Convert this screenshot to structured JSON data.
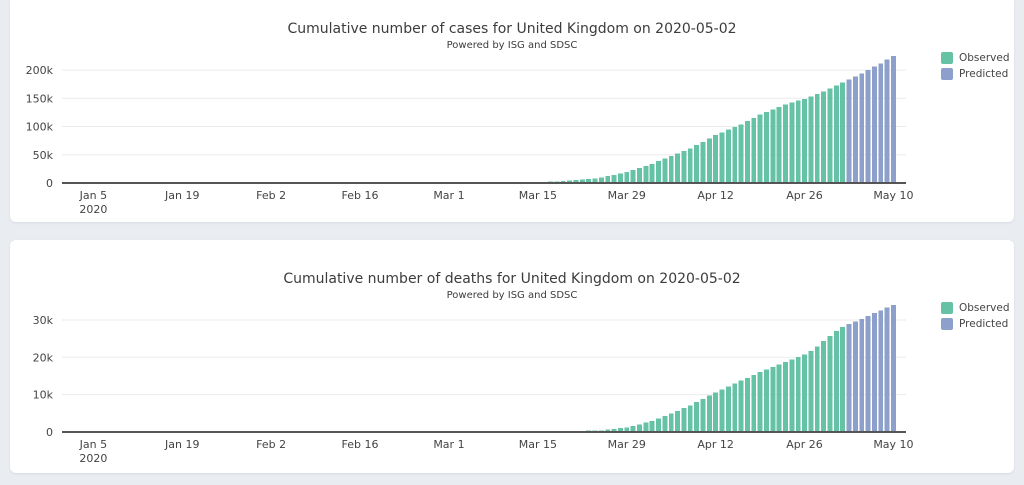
{
  "page": {
    "background": "#e9edf2",
    "card_background": "#ffffff"
  },
  "style": {
    "axis_color": "#555555",
    "grid_color": "#ebebeb",
    "text_color": "#444444",
    "observed_color": "#66c2a5",
    "predicted_color": "#8da0cb"
  },
  "chart_data": [
    {
      "type": "bar",
      "title": "Cumulative number of cases for United Kingdom on 2020-05-02",
      "subtitle": "Powered by ISG and SDSC",
      "xlabel": "",
      "ylabel": "",
      "ylim": [
        0,
        232000
      ],
      "grid": "horizontal-only",
      "legend_position": "top-right",
      "legend": [
        {
          "label": "Observed",
          "color": "#66c2a5"
        },
        {
          "label": "Predicted",
          "color": "#8da0cb"
        }
      ],
      "y_ticks": [
        {
          "v": 0,
          "label": "0"
        },
        {
          "v": 50000,
          "label": "50k"
        },
        {
          "v": 100000,
          "label": "100k"
        },
        {
          "v": 150000,
          "label": "150k"
        },
        {
          "v": 200000,
          "label": "200k"
        }
      ],
      "x_axis_start_date": "2020-01-04",
      "x_axis_end_date": "2020-05-10",
      "x_ticks": [
        {
          "day": 1,
          "label": "Jan 5",
          "sublabel": "2020"
        },
        {
          "day": 15,
          "label": "Jan 19"
        },
        {
          "day": 29,
          "label": "Feb 2"
        },
        {
          "day": 43,
          "label": "Feb 16"
        },
        {
          "day": 57,
          "label": "Mar 1"
        },
        {
          "day": 71,
          "label": "Mar 15"
        },
        {
          "day": 85,
          "label": "Mar 29"
        },
        {
          "day": 99,
          "label": "Apr 12"
        },
        {
          "day": 113,
          "label": "Apr 26"
        },
        {
          "day": 127,
          "label": "May 10"
        }
      ],
      "series": [
        {
          "name": "Observed",
          "color": "#66c2a5",
          "start_day": 43,
          "start_date": "2020-02-16",
          "values": [
            9,
            9,
            9,
            9,
            13,
            13,
            13,
            15,
            16,
            16,
            18,
            19,
            20,
            23,
            40,
            60,
            80,
            100,
            120,
            175,
            230,
            290,
            345,
            400,
            600,
            800,
            1000,
            1200,
            1400,
            1900,
            2400,
            2950,
            3500,
            4000,
            5100,
            6200,
            7300,
            8400,
            9500,
            12000,
            14500,
            17000,
            19500,
            23100,
            26700,
            30400,
            34000,
            38700,
            43300,
            48000,
            52300,
            56700,
            61000,
            67000,
            73000,
            79000,
            85000,
            89800,
            94500,
            99300,
            104000,
            109700,
            115300,
            121000,
            125500,
            130000,
            134500,
            139000,
            142300,
            145700,
            149000,
            153300,
            157700,
            162000,
            167300,
            172700,
            178000
          ]
        },
        {
          "name": "Predicted",
          "color": "#8da0cb",
          "start_day": 120,
          "start_date": "2020-05-03",
          "values": [
            183000,
            188500,
            194000,
            200000,
            206000,
            212000,
            218500,
            225000
          ]
        }
      ]
    },
    {
      "type": "bar",
      "title": "Cumulative number of deaths for United Kingdom on 2020-05-02",
      "subtitle": "Powered by ISG and SDSC",
      "xlabel": "",
      "ylabel": "",
      "ylim": [
        0,
        34000
      ],
      "grid": "horizontal-only",
      "legend_position": "top-right",
      "legend": [
        {
          "label": "Observed",
          "color": "#66c2a5"
        },
        {
          "label": "Predicted",
          "color": "#8da0cb"
        }
      ],
      "y_ticks": [
        {
          "v": 0,
          "label": "0"
        },
        {
          "v": 10000,
          "label": "10k"
        },
        {
          "v": 20000,
          "label": "20k"
        },
        {
          "v": 30000,
          "label": "30k"
        }
      ],
      "x_axis_start_date": "2020-01-04",
      "x_axis_end_date": "2020-05-10",
      "x_ticks": [
        {
          "day": 1,
          "label": "Jan 5",
          "sublabel": "2020"
        },
        {
          "day": 15,
          "label": "Jan 19"
        },
        {
          "day": 29,
          "label": "Feb 2"
        },
        {
          "day": 43,
          "label": "Feb 16"
        },
        {
          "day": 57,
          "label": "Mar 1"
        },
        {
          "day": 71,
          "label": "Mar 15"
        },
        {
          "day": 85,
          "label": "Mar 29"
        },
        {
          "day": 99,
          "label": "Apr 12"
        },
        {
          "day": 113,
          "label": "Apr 26"
        },
        {
          "day": 127,
          "label": "May 10"
        }
      ],
      "series": [
        {
          "name": "Observed",
          "color": "#66c2a5",
          "start_day": 61,
          "start_date": "2020-03-05",
          "values": [
            1,
            2,
            3,
            4,
            5,
            6,
            12,
            18,
            24,
            29,
            35,
            57,
            79,
            100,
            122,
            144,
            208,
            272,
            336,
            400,
            465,
            656,
            847,
            1038,
            1228,
            1651,
            2075,
            2498,
            2921,
            3592,
            4263,
            4934,
            5655,
            6376,
            7097,
            7976,
            8855,
            9733,
            10612,
            11391,
            12170,
            12950,
            13729,
            14506,
            15283,
            16060,
            16730,
            17399,
            18069,
            18738,
            19403,
            20067,
            20732,
            21700,
            22900,
            24300,
            25700,
            27000,
            28131
          ]
        },
        {
          "name": "Predicted",
          "color": "#8da0cb",
          "start_day": 120,
          "start_date": "2020-05-03",
          "values": [
            28900,
            29600,
            30300,
            31000,
            31800,
            32500,
            33300,
            34000
          ]
        }
      ]
    }
  ]
}
